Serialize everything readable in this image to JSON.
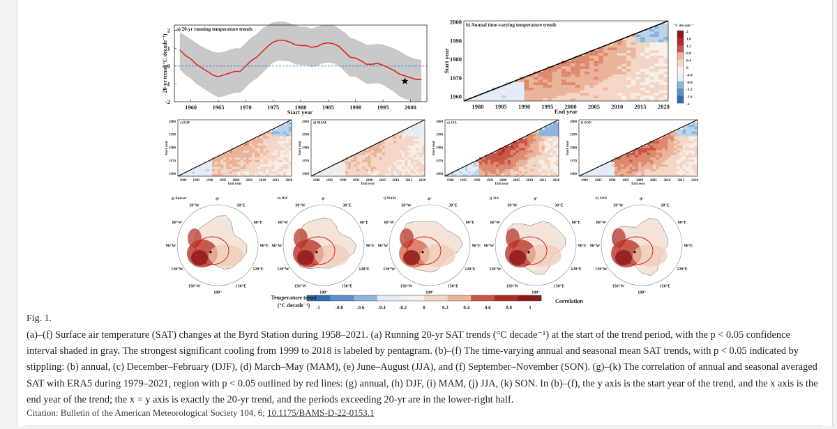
{
  "chart_data": [
    {
      "id": "a",
      "type": "line",
      "title": "a) 20-yr running temperature trends",
      "xlabel": "Start year",
      "ylabel": "20-yr trend(°C decade⁻¹)",
      "xlim": [
        1957,
        2003
      ],
      "ylim": [
        -2,
        2.3
      ],
      "xticks": [
        1960,
        1965,
        1970,
        1975,
        1980,
        1985,
        1990,
        1995,
        2000
      ],
      "yticks": [
        -2,
        -1,
        0,
        1,
        2
      ],
      "x": [
        1958,
        1959,
        1960,
        1961,
        1962,
        1963,
        1964,
        1965,
        1966,
        1967,
        1968,
        1969,
        1970,
        1971,
        1972,
        1973,
        1974,
        1975,
        1976,
        1977,
        1978,
        1979,
        1980,
        1981,
        1982,
        1983,
        1984,
        1985,
        1986,
        1987,
        1988,
        1989,
        1990,
        1991,
        1992,
        1993,
        1994,
        1995,
        1996,
        1997,
        1998,
        1999,
        2000,
        2001,
        2002
      ],
      "series": [
        {
          "name": "trend",
          "values": [
            0.9,
            0.6,
            0.4,
            0.1,
            -0.1,
            -0.3,
            -0.5,
            -0.6,
            -0.5,
            -0.4,
            -0.3,
            -0.3,
            0.0,
            0.3,
            0.5,
            0.8,
            1.1,
            1.35,
            1.45,
            1.45,
            1.35,
            1.2,
            1.15,
            1.15,
            1.05,
            1.1,
            1.25,
            1.3,
            1.25,
            1.1,
            0.8,
            0.5,
            0.45,
            0.3,
            0.1,
            0.1,
            0.15,
            0.05,
            -0.1,
            -0.25,
            -0.45,
            -0.55,
            -0.65,
            -0.75,
            -0.75
          ]
        },
        {
          "name": "ci_upper",
          "values": [
            1.9,
            1.7,
            1.5,
            1.3,
            1.1,
            0.95,
            0.8,
            0.75,
            0.8,
            0.9,
            1.0,
            1.0,
            1.3,
            1.6,
            1.8,
            2.1,
            2.3,
            2.45,
            2.5,
            2.5,
            2.4,
            2.3,
            2.2,
            2.2,
            2.1,
            2.2,
            2.3,
            2.3,
            2.3,
            2.1,
            1.9,
            1.6,
            1.5,
            1.35,
            1.2,
            1.2,
            1.25,
            1.2,
            1.1,
            1.0,
            0.85,
            0.65,
            0.5,
            0.4,
            0.35
          ]
        },
        {
          "name": "ci_lower",
          "values": [
            -0.2,
            -0.5,
            -0.7,
            -1.0,
            -1.2,
            -1.4,
            -1.6,
            -1.75,
            -1.7,
            -1.6,
            -1.5,
            -1.5,
            -1.2,
            -0.9,
            -0.7,
            -0.4,
            -0.1,
            0.2,
            0.3,
            0.3,
            0.25,
            0.1,
            0.05,
            0.05,
            -0.05,
            0.0,
            0.15,
            0.2,
            0.15,
            0.0,
            -0.3,
            -0.6,
            -0.6,
            -0.8,
            -1.0,
            -1.0,
            -0.95,
            -1.05,
            -1.25,
            -1.45,
            -1.7,
            -1.85,
            -1.95,
            -2.0,
            -2.0
          ]
        }
      ],
      "reference_line": 0,
      "annotation": {
        "marker": "star",
        "x": 1999,
        "y": -0.85,
        "label": "strongest significant cooling 1999–2018"
      }
    },
    {
      "id": "b",
      "type": "heatmap",
      "title": "b) Annual time-varying temperature trends",
      "xlabel": "End year",
      "ylabel": "Start year",
      "xlim": [
        1977,
        2021
      ],
      "ylim": [
        1958,
        2001
      ],
      "xticks": [
        1980,
        1985,
        1990,
        1995,
        2000,
        2005,
        2010,
        2015,
        2020
      ],
      "yticks": [
        1960,
        1970,
        1980,
        1990,
        2000
      ],
      "colorbar_label": "°C decade⁻¹",
      "colorbar_ticks": [
        "2",
        "1.6",
        "1.2",
        "0.8",
        "0.4",
        "0",
        "-0.4",
        "-0.8",
        "-1.2",
        "-1.6",
        "-2"
      ],
      "note": "lower-right of x=y line filled; p<0.05 stippled"
    },
    {
      "id": "c",
      "type": "heatmap",
      "title": "c) DJF",
      "xlabel": "End year",
      "ylabel": "Start year",
      "xticks": [
        1980,
        1985,
        1990,
        1995,
        2000,
        2005,
        2010,
        2015,
        2020
      ],
      "yticks": [
        1960,
        1970,
        1980,
        1990,
        2000
      ]
    },
    {
      "id": "d",
      "type": "heatmap",
      "title": "d) MAM",
      "xlabel": "End year",
      "ylabel": "Start year",
      "xticks": [
        1980,
        1985,
        1990,
        1995,
        2000,
        2005,
        2010,
        2015,
        2020
      ],
      "yticks": [
        1960,
        1970,
        1980,
        1990,
        2000
      ]
    },
    {
      "id": "e",
      "type": "heatmap",
      "title": "e) JJA",
      "xlabel": "End year",
      "ylabel": "Start year",
      "xticks": [
        1980,
        1985,
        1990,
        1995,
        2000,
        2005,
        2010,
        2015,
        2020
      ],
      "yticks": [
        1960,
        1970,
        1980,
        1990,
        2000
      ]
    },
    {
      "id": "f",
      "type": "heatmap",
      "title": "f) SON",
      "xlabel": "End year",
      "ylabel": "Start year",
      "xticks": [
        1980,
        1985,
        1990,
        1995,
        2000,
        2005,
        2010,
        2015,
        2020
      ],
      "yticks": [
        1960,
        1970,
        1980,
        1990,
        2000
      ]
    },
    {
      "id": "g-k",
      "type": "heatmap",
      "subtype": "polar map",
      "panels": [
        "g) Annual",
        "h) DJF",
        "i) MAM",
        "j) JJA",
        "k) SON"
      ],
      "lon_labels": [
        "0°",
        "30°E",
        "60°E",
        "90°E",
        "120°E",
        "150°E",
        "180°",
        "150°W",
        "120°W",
        "90°W",
        "60°W",
        "30°W"
      ],
      "colorbar_left_title": "Temperature trend",
      "colorbar_left_unit": "(°C decade⁻¹)",
      "colorbar_right_title": "Correlation",
      "colorbar_ticks": [
        "-1",
        "-0.8",
        "-0.6",
        "-0.4",
        "-0.2",
        "0",
        "0.2",
        "0.4",
        "0.6",
        "0.8",
        "1"
      ]
    }
  ],
  "colors": {
    "blue_dark": "#2f6db5",
    "blue_mid": "#79a9d6",
    "blue_light": "#cfe0f0",
    "neutral": "#f8f2ee",
    "red_light": "#f1cdb8",
    "red_mid": "#de8a6e",
    "red_dark": "#b22a26",
    "red_deep": "#8c1a1c",
    "trend_line": "#e0271c",
    "ci_fill": "#c9c9c9"
  },
  "caption": {
    "fig_label": "Fig. 1.",
    "text": "(a)–(f) Surface air temperature (SAT) changes at the Byrd Station during 1958–2021. (a) Running 20-yr SAT trends (°C decade⁻¹) at the start of the trend period, with the p < 0.05 confidence interval shaded in gray. The strongest significant cooling from 1999 to 2018 is labeled by pentagram. (b)–(f) The time-varying annual and seasonal mean SAT trends, with p < 0.05 indicated by stippling: (b) annual, (c) December–February (DJF), (d) March–May (MAM), (e) June–August (JJA), and (f) September–November (SON). (g)–(k) The correlation of annual and seasonal averaged SAT with ERA5 during 1979–2021, region with p < 0.05 outlined by red lines: (g) annual, (h) DJF, (i) MAM, (j) JJA, (k) SON. In (b)–(f), the y axis is the start year of the trend, and the x axis is the end year of the trend; the x = y axis is exactly the 20-yr trend, and the periods exceeding 20-yr are in the lower-right half."
  },
  "citation": {
    "prefix": "Citation: Bulletin of the American Meteorological Society 104, 6; ",
    "doi": "10.1175/BAMS-D-22-0153.1"
  }
}
